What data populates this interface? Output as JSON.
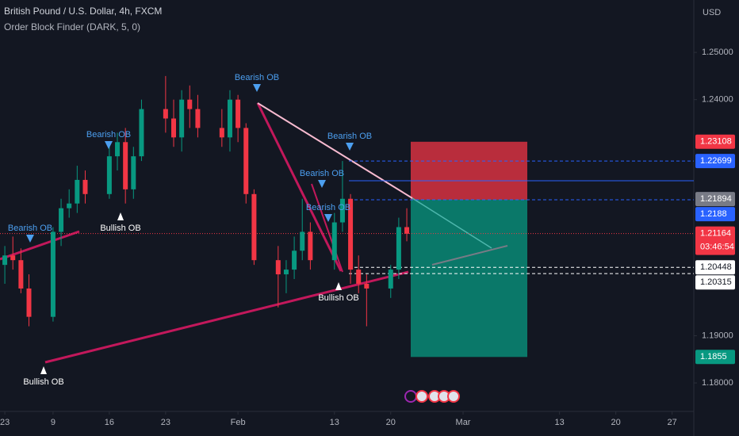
{
  "chart_data": {
    "type": "candlestick",
    "title": "British Pound / U.S. Dollar, 4h, FXCM",
    "subtitle": "Order Block Finder (DARK, 5, 0)",
    "currency": "USD",
    "up_color": "#089981",
    "down_color": "#f23645",
    "x": [
      -6,
      -5,
      -4,
      -3,
      0,
      1,
      2,
      3,
      4,
      7,
      8,
      9,
      10,
      11,
      14,
      15,
      16,
      17,
      18,
      21,
      22,
      23,
      24,
      25,
      28,
      29,
      30,
      31,
      32,
      35,
      36,
      37,
      38,
      39,
      42,
      43,
      44
    ],
    "open": [
      1.205,
      1.207,
      1.206,
      1.2,
      1.194,
      1.212,
      1.217,
      1.218,
      1.223,
      1.22,
      1.228,
      1.231,
      1.221,
      1.228,
      1.238,
      1.236,
      1.232,
      1.24,
      1.238,
      1.234,
      1.232,
      1.24,
      1.234,
      1.22,
      1.206,
      1.203,
      1.204,
      1.208,
      1.212,
      1.206,
      1.214,
      1.219,
      1.204,
      1.201,
      1.2,
      1.204,
      1.213
    ],
    "high": [
      1.209,
      1.211,
      1.2085,
      1.203,
      1.213,
      1.219,
      1.221,
      1.226,
      1.225,
      1.23,
      1.233,
      1.234,
      1.23,
      1.24,
      1.245,
      1.24,
      1.242,
      1.243,
      1.241,
      1.238,
      1.242,
      1.241,
      1.235,
      1.221,
      1.209,
      1.206,
      1.211,
      1.219,
      1.214,
      1.216,
      1.227,
      1.22,
      1.207,
      1.203,
      1.205,
      1.215,
      1.217
    ],
    "low": [
      1.201,
      1.204,
      1.199,
      1.192,
      1.193,
      1.209,
      1.215,
      1.216,
      1.218,
      1.219,
      1.225,
      1.218,
      1.219,
      1.227,
      1.233,
      1.23,
      1.229,
      1.234,
      1.232,
      1.23,
      1.229,
      1.231,
      1.218,
      1.205,
      1.196,
      1.199,
      1.202,
      1.206,
      1.204,
      1.204,
      1.212,
      1.201,
      1.199,
      1.192,
      1.198,
      1.202,
      1.21
    ],
    "close": [
      1.207,
      1.206,
      1.2,
      1.194,
      1.212,
      1.217,
      1.218,
      1.223,
      1.22,
      1.228,
      1.231,
      1.221,
      1.228,
      1.238,
      1.236,
      1.232,
      1.24,
      1.238,
      1.234,
      1.232,
      1.24,
      1.234,
      1.22,
      1.206,
      1.203,
      1.204,
      1.208,
      1.212,
      1.206,
      1.214,
      1.219,
      1.204,
      1.201,
      1.2,
      1.204,
      1.213,
      1.2116
    ],
    "xlim": [
      -6.6,
      79.7
    ],
    "xticks": [
      {
        "value": -6,
        "label": "23"
      },
      {
        "value": 0,
        "label": "9"
      },
      {
        "value": 7,
        "label": "16"
      },
      {
        "value": 14,
        "label": "23"
      },
      {
        "value": 23,
        "label": "Feb"
      },
      {
        "value": 35,
        "label": "13"
      },
      {
        "value": 42,
        "label": "20"
      },
      {
        "value": 51,
        "label": "Mar"
      },
      {
        "value": 63,
        "label": "13"
      },
      {
        "value": 70,
        "label": "20"
      },
      {
        "value": 77,
        "label": "27"
      }
    ],
    "ylim": [
      1.1743,
      1.2611
    ],
    "yticks": [
      {
        "value": 1.18,
        "label": "1.18000"
      },
      {
        "value": 1.19,
        "label": "1.19000"
      },
      {
        "value": 1.24,
        "label": "1.24000"
      },
      {
        "value": 1.25,
        "label": "1.25000"
      }
    ],
    "price_labels": [
      {
        "value": 1.23108,
        "color": "#f23645",
        "line": "none"
      },
      {
        "value": 1.22699,
        "color": "#2962ff",
        "line": "dashed"
      },
      {
        "value": 1.21894,
        "color": "#787b86",
        "line": "none"
      },
      {
        "value": 1.2188,
        "color": "#2962ff",
        "line": "dashed"
      },
      {
        "value": 1.21164,
        "color": "#f23645",
        "line": "dotted"
      },
      {
        "value": 1.20448,
        "color": "#ffffff",
        "line": "dashed"
      },
      {
        "value": 1.20315,
        "color": "#ffffff",
        "line": "dashed"
      },
      {
        "value": 1.1855,
        "color": "#089981",
        "line": "none"
      }
    ],
    "countdown": "03:46:54",
    "order_blocks": [
      "Bearish OB",
      "Bearish OB",
      "Bearish OB",
      "Bearish OB",
      "Bearish OB",
      "Bearish OB",
      "Bullish OB",
      "Bullish OB",
      "Bullish OB"
    ]
  }
}
